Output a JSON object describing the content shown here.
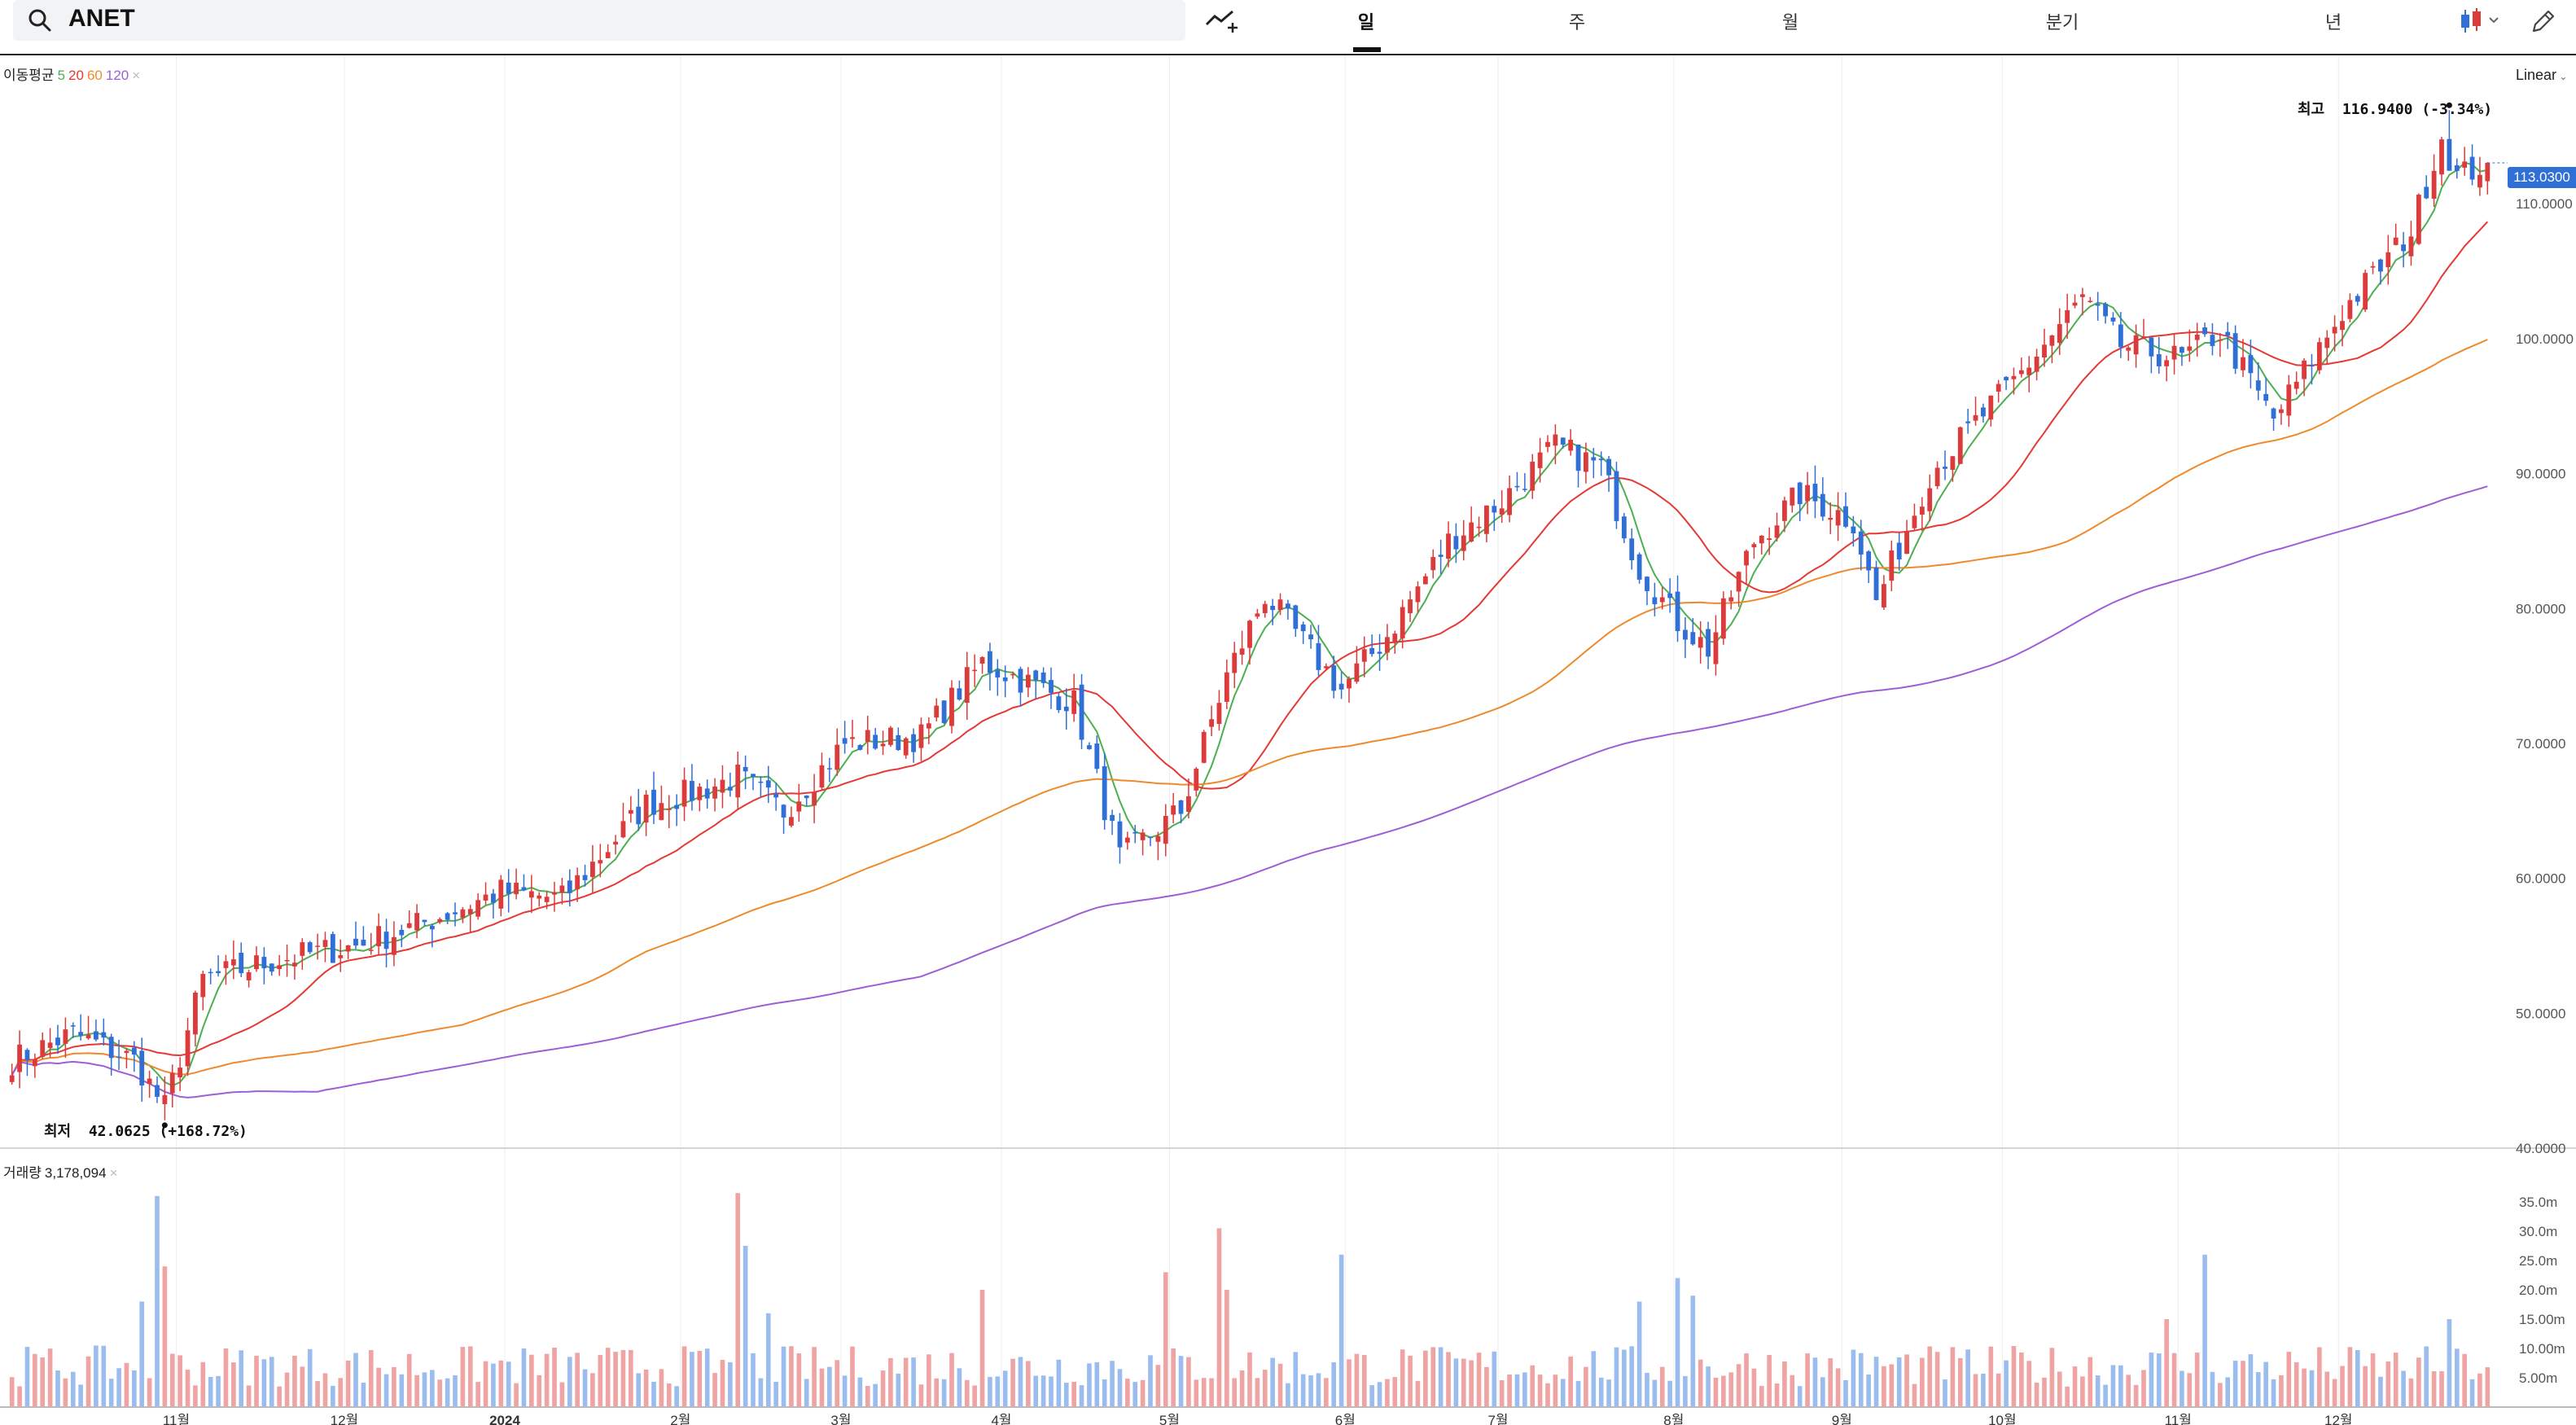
{
  "toolbar": {
    "search_value": "ANET",
    "period_tabs": [
      "일",
      "주",
      "월",
      "분기",
      "년"
    ],
    "active_tab": "일"
  },
  "legend_ma": {
    "label": "이동평균",
    "periods": [
      "5",
      "20",
      "60",
      "120"
    ],
    "colors": [
      "#4caf50",
      "#e53935",
      "#ef8a2c",
      "#9c5fd6"
    ]
  },
  "legend_volume": {
    "label": "거래량",
    "value": "3,178,094"
  },
  "scale_mode": "Linear",
  "current_price": "113.0300",
  "high_marker": {
    "label": "최고",
    "value": "116.9400 (-3.34%)"
  },
  "low_marker": {
    "label": "최저",
    "value": "42.0625 (+168.72%)"
  },
  "colors": {
    "up": "#dc3b3b",
    "down": "#2f6fd6",
    "vol_up": "#f0a3a3",
    "vol_down": "#9bbcef"
  },
  "chart_data": {
    "type": "candlestick",
    "price_axis": {
      "ylim": [
        40,
        121
      ],
      "ticks": [
        "40.0000",
        "50.0000",
        "60.0000",
        "70.0000",
        "80.0000",
        "90.0000",
        "100.0000",
        "110.0000"
      ]
    },
    "volume_axis": {
      "ylim": [
        0,
        40000000
      ],
      "ticks": [
        "5.00m",
        "10.00m",
        "15.00m",
        "20.0m",
        "25.0m",
        "30.0m",
        "35.0m"
      ]
    },
    "x_month_labels": [
      "11월",
      "12월",
      "2024",
      "2월",
      "3월",
      "4월",
      "5월",
      "6월",
      "7월",
      "8월",
      "9월",
      "10월",
      "11월",
      "12월"
    ],
    "price_anchors": [
      [
        "2023-10-02",
        46.5
      ],
      [
        "2023-10-12",
        48.5
      ],
      [
        "2023-10-24",
        46.5
      ],
      [
        "2023-10-30",
        43.0
      ],
      [
        "2023-11-06",
        52.5
      ],
      [
        "2023-11-20",
        54.0
      ],
      [
        "2023-12-04",
        55.0
      ],
      [
        "2023-12-14",
        56.5
      ],
      [
        "2023-12-29",
        59.0
      ],
      [
        "2024-01-10",
        58.5
      ],
      [
        "2024-01-25",
        65.5
      ],
      [
        "2024-02-05",
        66.5
      ],
      [
        "2024-02-12",
        67.5
      ],
      [
        "2024-02-20",
        65.0
      ],
      [
        "2024-03-01",
        70.0
      ],
      [
        "2024-03-15",
        70.5
      ],
      [
        "2024-03-27",
        76.0
      ],
      [
        "2024-04-12",
        73.0
      ],
      [
        "2024-04-22",
        61.5
      ],
      [
        "2024-05-02",
        65.0
      ],
      [
        "2024-05-10",
        75.0
      ],
      [
        "2024-05-17",
        81.0
      ],
      [
        "2024-05-31",
        74.0
      ],
      [
        "2024-06-10",
        78.0
      ],
      [
        "2024-06-20",
        85.0
      ],
      [
        "2024-07-01",
        88.0
      ],
      [
        "2024-07-10",
        92.0
      ],
      [
        "2024-07-18",
        90.5
      ],
      [
        "2024-07-25",
        83.0
      ],
      [
        "2024-08-01",
        79.0
      ],
      [
        "2024-08-07",
        77.0
      ],
      [
        "2024-08-15",
        85.0
      ],
      [
        "2024-08-23",
        88.5
      ],
      [
        "2024-09-03",
        86.5
      ],
      [
        "2024-09-06",
        80.5
      ],
      [
        "2024-09-17",
        90.0
      ],
      [
        "2024-10-03",
        97.5
      ],
      [
        "2024-10-15",
        103.0
      ],
      [
        "2024-10-22",
        99.5
      ],
      [
        "2024-11-01",
        98.5
      ],
      [
        "2024-11-08",
        100.5
      ],
      [
        "2024-11-19",
        94.0
      ],
      [
        "2024-12-02",
        102.0
      ],
      [
        "2024-12-13",
        108.0
      ],
      [
        "2024-12-19",
        115.0
      ],
      [
        "2024-12-23",
        112.0
      ],
      [
        "2024-12-27",
        113.03
      ]
    ],
    "volume_spikes": [
      [
        "2023-10-27",
        36000000
      ],
      [
        "2023-10-30",
        24000000
      ],
      [
        "2023-10-25",
        18000000
      ],
      [
        "2024-02-12",
        36500000
      ],
      [
        "2024-02-13",
        27500000
      ],
      [
        "2024-02-16",
        16000000
      ],
      [
        "2024-03-27",
        20000000
      ],
      [
        "2024-04-30",
        23000000
      ],
      [
        "2024-05-09",
        30500000
      ],
      [
        "2024-05-10",
        20000000
      ],
      [
        "2024-05-31",
        26000000
      ],
      [
        "2024-08-01",
        22000000
      ],
      [
        "2024-08-05",
        19000000
      ],
      [
        "2024-07-25",
        18000000
      ],
      [
        "2024-10-30",
        15000000
      ],
      [
        "2024-11-06",
        26000000
      ],
      [
        "2024-12-20",
        15000000
      ]
    ],
    "moving_averages": [
      "5",
      "20",
      "60",
      "120"
    ]
  }
}
